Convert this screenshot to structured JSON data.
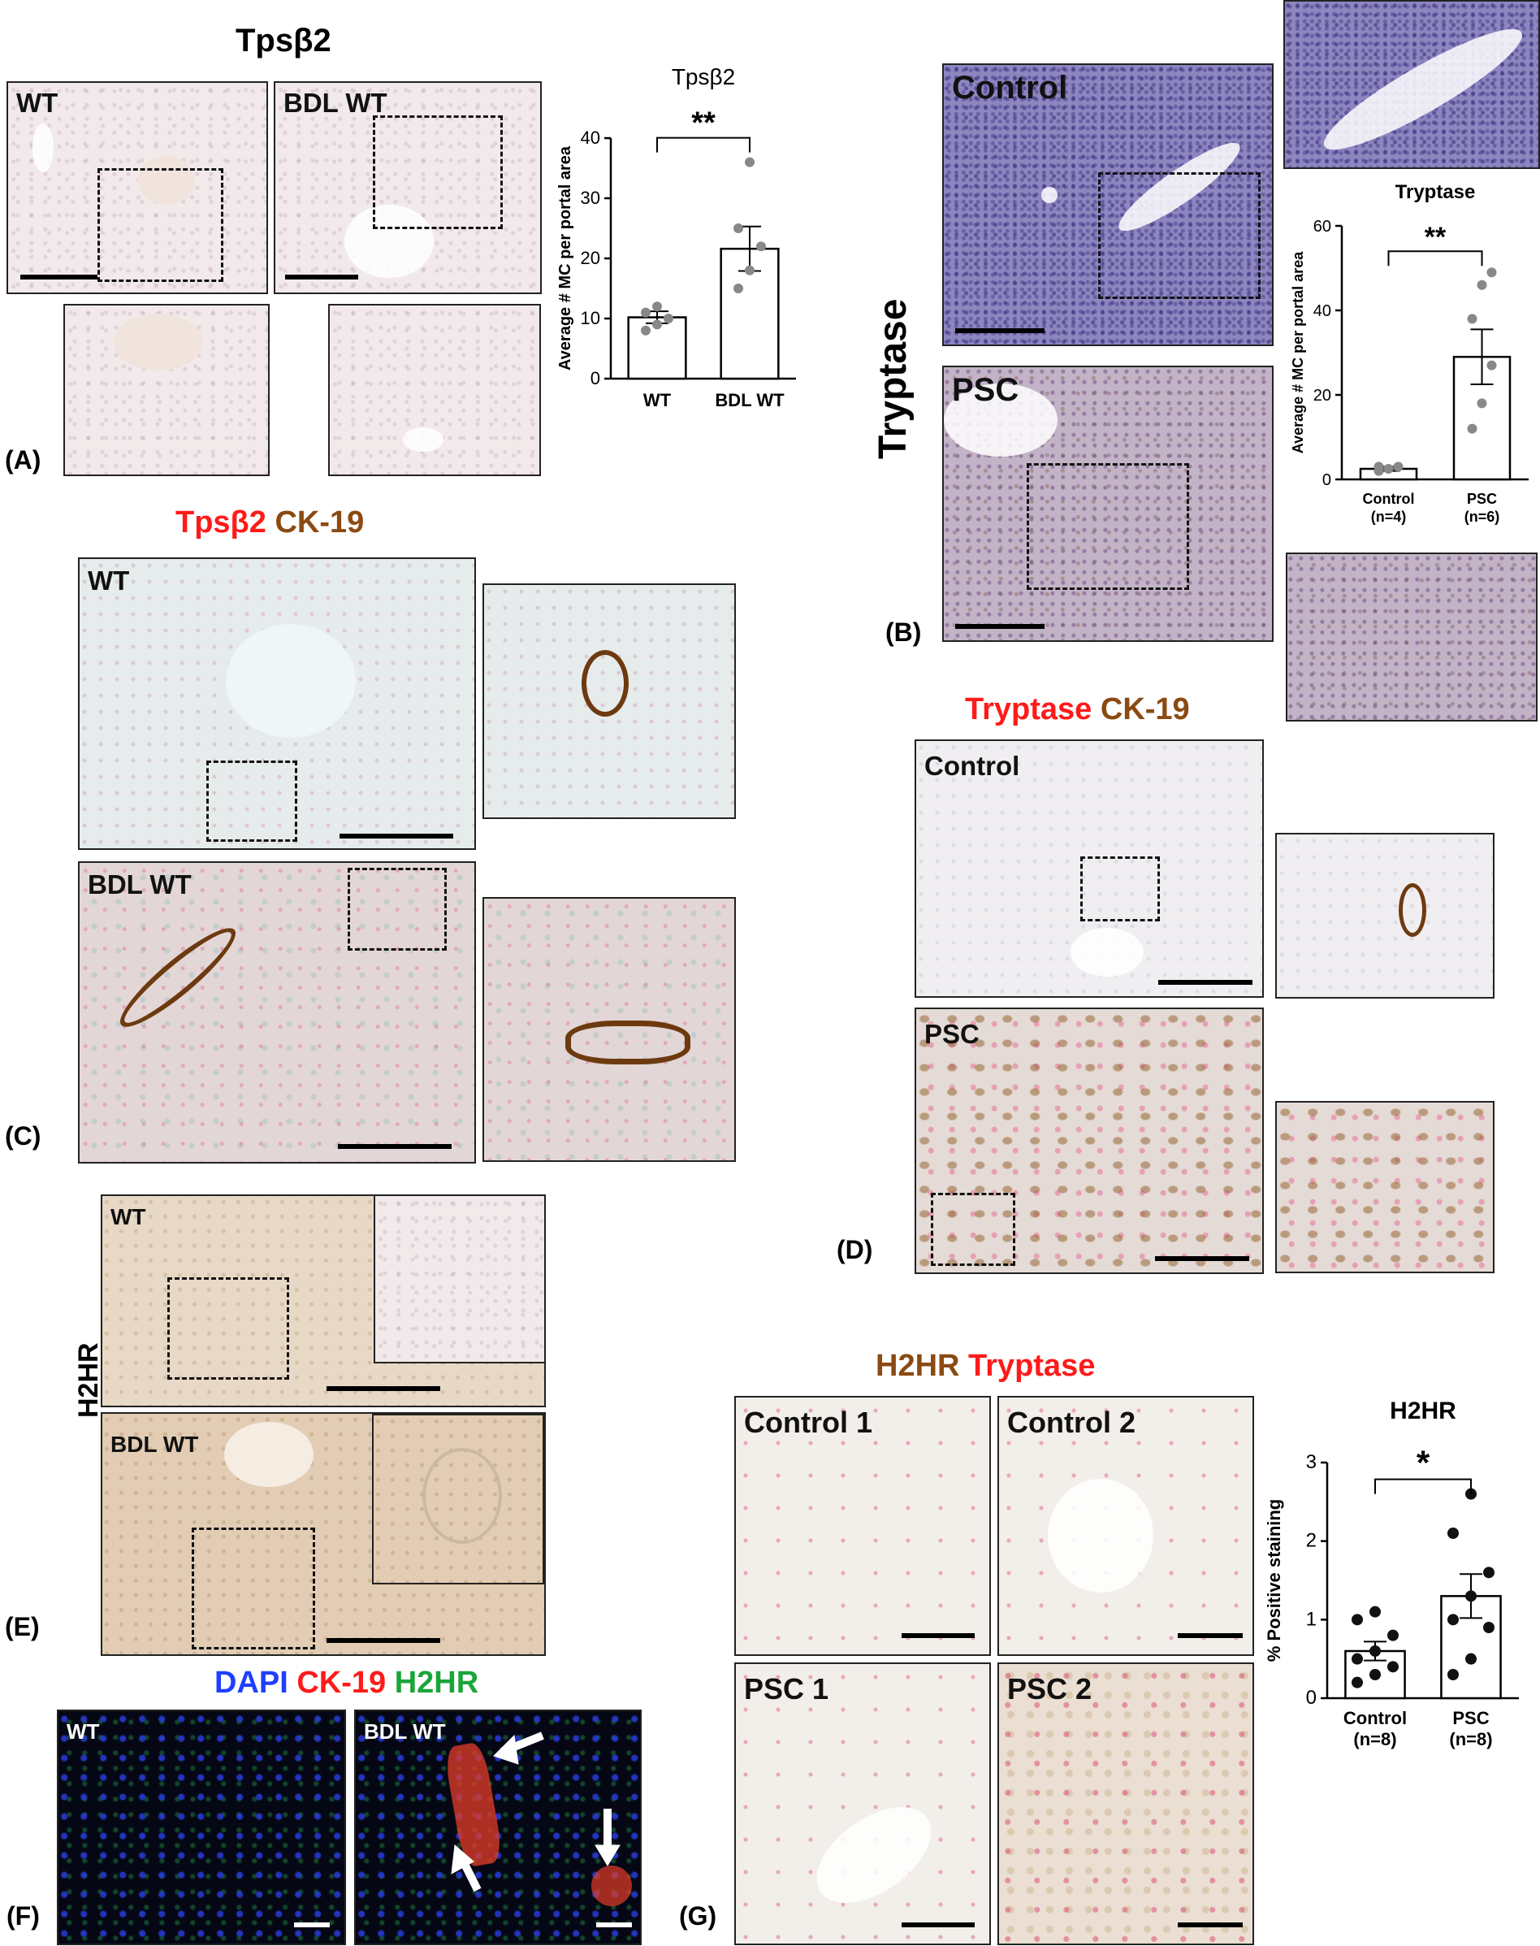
{
  "panelA": {
    "title": "Tpsβ2",
    "label": "(A)",
    "wt": "WT",
    "bdl": "BDL WT"
  },
  "panelB": {
    "side_title": "Tryptase",
    "control": "Control",
    "psc": "PSC",
    "label": "(B)"
  },
  "panelC": {
    "title_red": "Tpsβ2",
    "title_brown": "CK-19",
    "wt": "WT",
    "bdl": "BDL WT",
    "label": "(C)"
  },
  "panelD": {
    "title_red": "Tryptase",
    "title_brown": "CK-19",
    "control": "Control",
    "psc": "PSC",
    "label": "(D)"
  },
  "panelE": {
    "side_title": "H2HR",
    "wt": "WT",
    "bdl": "BDL WT",
    "label": "(E)"
  },
  "panelF": {
    "title_dapi": "DAPI",
    "title_ck": "CK-19",
    "title_h2hr": "H2HR",
    "wt": "WT",
    "bdl": "BDL WT",
    "label": "(F)"
  },
  "panelG": {
    "title_brown": "H2HR",
    "title_red": "Tryptase",
    "control1": "Control 1",
    "control2": "Control 2",
    "psc1": "PSC 1",
    "psc2": "PSC 2",
    "label": "(G)"
  },
  "colors": {
    "red": "#ff1a1a",
    "brown": "#8b4a12",
    "blue": "#1f3fff",
    "green": "#1aa53a",
    "dot": "#888888"
  },
  "chart_data": [
    {
      "type": "bar",
      "title": "Tpsβ2",
      "ylabel": "Average # MC per portal area",
      "categories": [
        "WT",
        "BDL WT"
      ],
      "values": [
        10.2,
        21.6
      ],
      "errors": [
        1.0,
        3.7
      ],
      "points": [
        [
          8.0,
          9.0,
          10.0,
          11.0,
          12.0
        ],
        [
          15.0,
          18.0,
          22.0,
          25.0,
          36.0
        ]
      ],
      "ylim": [
        0,
        40
      ],
      "yticks": [
        0,
        10,
        20,
        30,
        40
      ],
      "significance": "**"
    },
    {
      "type": "bar",
      "title": "Tryptase",
      "ylabel": "Average # MC per portal area",
      "categories": [
        "Control",
        "PSC"
      ],
      "category_sub": [
        "(n=4)",
        "(n=6)"
      ],
      "values": [
        2.5,
        29.0
      ],
      "errors": [
        0.5,
        6.5
      ],
      "points": [
        [
          2.0,
          2.5,
          3.0,
          3.0
        ],
        [
          12.0,
          18.0,
          27.0,
          38.0,
          46.0,
          49.0
        ]
      ],
      "ylim": [
        0,
        60
      ],
      "yticks": [
        0,
        20,
        40,
        60
      ],
      "significance": "**"
    },
    {
      "type": "bar",
      "title": "H2HR",
      "ylabel": "% Positive staining",
      "categories": [
        "Control",
        "PSC"
      ],
      "category_sub": [
        "(n=8)",
        "(n=8)"
      ],
      "values": [
        0.6,
        1.3
      ],
      "errors": [
        0.12,
        0.28
      ],
      "points": [
        [
          0.2,
          0.3,
          0.4,
          0.5,
          0.6,
          0.8,
          1.0,
          1.1
        ],
        [
          0.3,
          0.5,
          0.9,
          1.0,
          1.3,
          1.6,
          2.1,
          2.6
        ]
      ],
      "ylim": [
        0,
        3
      ],
      "yticks": [
        0,
        1,
        2,
        3
      ],
      "significance": "*"
    }
  ]
}
